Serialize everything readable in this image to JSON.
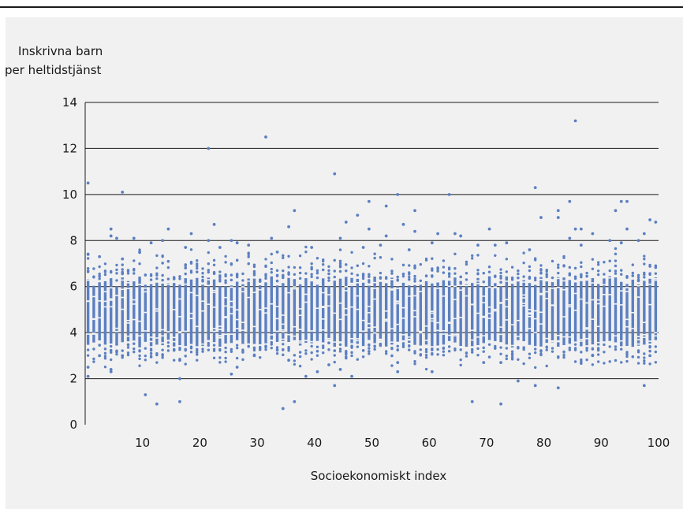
{
  "chart_data": {
    "type": "scatter",
    "title": "",
    "ylabel_lines": [
      "Inskrivna barn",
      "per heltidstjänst"
    ],
    "xlabel": "Socioekonomiskt index",
    "xlim": [
      0,
      100
    ],
    "ylim": [
      0,
      14
    ],
    "x_ticks": [
      10,
      20,
      30,
      40,
      50,
      60,
      70,
      80,
      90,
      100
    ],
    "y_ticks": [
      0,
      2,
      4,
      6,
      8,
      10,
      12,
      14
    ],
    "grid": "horizontal",
    "point_color": "#5b7fc1",
    "grid_color": "#1a1a1a",
    "band": {
      "x_start": 0,
      "x_end": 99,
      "core_low": 3.7,
      "core_high": 6.3,
      "note": "dense band of observations at each integer x from 0 to 99"
    },
    "points": [
      [
        0,
        10.5
      ],
      [
        0,
        7.4
      ],
      [
        0,
        2.5
      ],
      [
        0,
        2.1
      ],
      [
        2,
        7.3
      ],
      [
        2,
        3.0
      ],
      [
        4,
        8.5
      ],
      [
        4,
        8.2
      ],
      [
        4,
        2.4
      ],
      [
        4,
        2.3
      ],
      [
        5,
        8.1
      ],
      [
        6,
        10.1
      ],
      [
        6,
        7.2
      ],
      [
        6,
        3.0
      ],
      [
        8,
        8.1
      ],
      [
        9,
        7.5
      ],
      [
        10,
        1.3
      ],
      [
        11,
        7.9
      ],
      [
        12,
        0.9
      ],
      [
        13,
        8.0
      ],
      [
        14,
        8.5
      ],
      [
        16,
        1.0
      ],
      [
        16,
        2.0
      ],
      [
        16,
        2.8
      ],
      [
        17,
        7.7
      ],
      [
        18,
        8.3
      ],
      [
        21,
        12.0
      ],
      [
        21,
        8.0
      ],
      [
        22,
        8.7
      ],
      [
        23,
        7.7
      ],
      [
        25,
        8.0
      ],
      [
        25,
        2.2
      ],
      [
        26,
        2.5
      ],
      [
        26,
        7.9
      ],
      [
        28,
        7.8
      ],
      [
        29,
        3.0
      ],
      [
        31,
        12.5
      ],
      [
        32,
        8.1
      ],
      [
        33,
        7.5
      ],
      [
        34,
        0.7
      ],
      [
        35,
        8.6
      ],
      [
        35,
        2.8
      ],
      [
        36,
        9.3
      ],
      [
        36,
        1.0
      ],
      [
        38,
        2.1
      ],
      [
        39,
        7.7
      ],
      [
        40,
        2.3
      ],
      [
        42,
        2.6
      ],
      [
        43,
        10.9
      ],
      [
        43,
        1.7
      ],
      [
        44,
        8.1
      ],
      [
        44,
        2.4
      ],
      [
        45,
        8.8
      ],
      [
        46,
        2.1
      ],
      [
        47,
        9.1
      ],
      [
        48,
        7.7
      ],
      [
        49,
        9.7
      ],
      [
        49,
        8.5
      ],
      [
        51,
        7.8
      ],
      [
        52,
        9.5
      ],
      [
        52,
        8.2
      ],
      [
        54,
        10.0
      ],
      [
        54,
        2.3
      ],
      [
        54,
        2.7
      ],
      [
        55,
        8.7
      ],
      [
        56,
        7.6
      ],
      [
        57,
        9.3
      ],
      [
        57,
        8.4
      ],
      [
        60,
        2.3
      ],
      [
        60,
        7.9
      ],
      [
        61,
        8.3
      ],
      [
        63,
        10.0
      ],
      [
        64,
        8.3
      ],
      [
        65,
        8.2
      ],
      [
        67,
        1.0
      ],
      [
        68,
        7.8
      ],
      [
        69,
        2.7
      ],
      [
        70,
        8.5
      ],
      [
        71,
        7.8
      ],
      [
        72,
        0.9
      ],
      [
        72,
        2.7
      ],
      [
        73,
        7.9
      ],
      [
        75,
        1.9
      ],
      [
        77,
        7.6
      ],
      [
        78,
        10.3
      ],
      [
        78,
        1.7
      ],
      [
        79,
        9.0
      ],
      [
        82,
        9.3
      ],
      [
        82,
        9.0
      ],
      [
        82,
        1.6
      ],
      [
        84,
        9.7
      ],
      [
        84,
        8.1
      ],
      [
        85,
        13.2
      ],
      [
        85,
        8.5
      ],
      [
        86,
        8.5
      ],
      [
        86,
        7.8
      ],
      [
        88,
        8.3
      ],
      [
        88,
        3.0
      ],
      [
        91,
        8.0
      ],
      [
        92,
        9.3
      ],
      [
        93,
        9.7
      ],
      [
        93,
        7.9
      ],
      [
        94,
        9.7
      ],
      [
        94,
        8.5
      ],
      [
        96,
        8.0
      ],
      [
        97,
        8.3
      ],
      [
        97,
        1.7
      ],
      [
        98,
        8.9
      ],
      [
        98,
        3.0
      ],
      [
        99,
        8.8
      ]
    ]
  }
}
